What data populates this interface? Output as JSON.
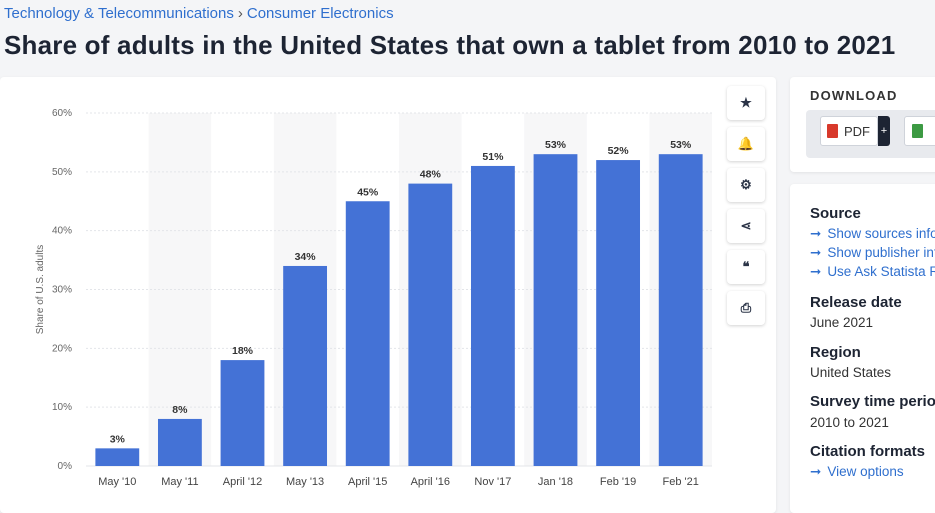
{
  "breadcrumb": {
    "category": "Technology & Telecommunications",
    "separator": "›",
    "subcategory": "Consumer Electronics"
  },
  "page_title": "Share of adults in the United States that own a tablet from 2010 to 2021",
  "tools": {
    "icons": [
      "star-icon",
      "bell-icon",
      "gear-icon",
      "share-icon",
      "quote-icon",
      "print-icon"
    ],
    "glyphs": [
      "★",
      "🔔",
      "⚙",
      "⋖",
      "❝",
      "⎙"
    ]
  },
  "download": {
    "title": "DOWNLOAD",
    "pdf_label": "PDF",
    "plus": "+"
  },
  "info": {
    "source_heading": "Source",
    "source_links": [
      "Show sources information",
      "Show publisher information",
      "Use Ask Statista Research Service"
    ],
    "release_heading": "Release date",
    "release_value": "June 2021",
    "region_heading": "Region",
    "region_value": "United States",
    "survey_heading": "Survey time period",
    "survey_value": "2010 to 2021",
    "citation_heading": "Citation formats",
    "citation_link": "View options",
    "arrow": "➞"
  },
  "colors": {
    "bar": "#4472d6",
    "link": "#2f6fce",
    "band": "#f7f7f8"
  },
  "chart_data": {
    "type": "bar",
    "categories": [
      "May '10",
      "May '11",
      "April '12",
      "May '13",
      "April '15",
      "April '16",
      "Nov '17",
      "Jan '18",
      "Feb '19",
      "Feb '21"
    ],
    "values": [
      3,
      8,
      18,
      34,
      45,
      48,
      51,
      53,
      52,
      53
    ],
    "value_labels": [
      "3%",
      "8%",
      "18%",
      "34%",
      "45%",
      "48%",
      "51%",
      "53%",
      "52%",
      "53%"
    ],
    "ylabel": "Share of U.S. adults",
    "yticks": [
      0,
      10,
      20,
      30,
      40,
      50,
      60
    ],
    "ytick_labels": [
      "0%",
      "10%",
      "20%",
      "30%",
      "40%",
      "50%",
      "60%"
    ],
    "ylim": [
      0,
      60
    ],
    "grid": true
  }
}
